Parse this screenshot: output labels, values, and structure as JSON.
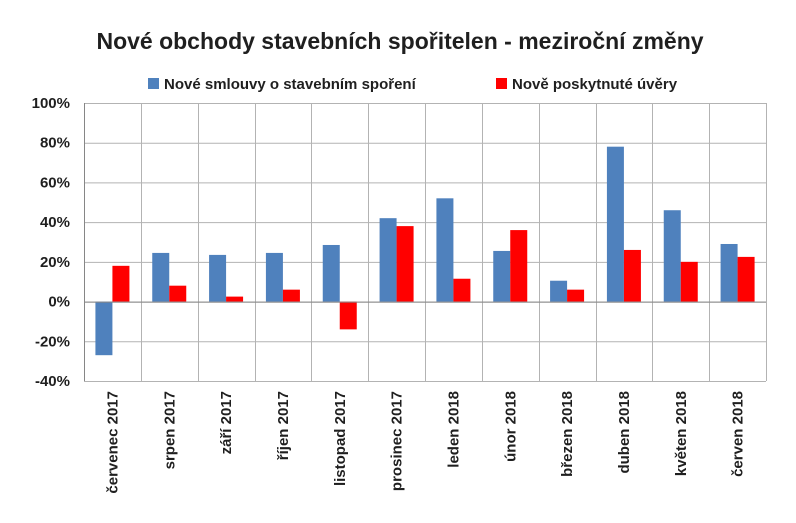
{
  "chart_data": {
    "type": "bar",
    "title": "Nové obchody stavebních spořitelen - meziroční změny",
    "categories": [
      "červenec 2017",
      "srpen 2017",
      "září 2017",
      "říjen 2017",
      "listopad 2017",
      "prosinec 2017",
      "leden 2018",
      "únor 2018",
      "březen 2018",
      "duben 2018",
      "květen 2018",
      "červen 2018"
    ],
    "series": [
      {
        "name": "Nové smlouvy o stavebním spoření",
        "color": "#4f81bd",
        "values": [
          -27,
          24.5,
          23.5,
          24.5,
          28.5,
          42,
          52,
          25.5,
          10.5,
          78,
          46,
          29
        ]
      },
      {
        "name": "Nově poskytnuté úvěry",
        "color": "#ff0000",
        "values": [
          18,
          8,
          2.5,
          6,
          -14,
          38,
          11.5,
          36,
          6,
          26,
          20,
          22.5
        ]
      }
    ],
    "ylim": [
      -40,
      100
    ],
    "yticks": [
      100,
      80,
      60,
      40,
      20,
      0,
      -20,
      -40
    ],
    "ytick_labels": [
      "100%",
      "80%",
      "60%",
      "40%",
      "20%",
      "0%",
      "-20%",
      "-40%"
    ],
    "grid": true,
    "legend_position": "top"
  }
}
